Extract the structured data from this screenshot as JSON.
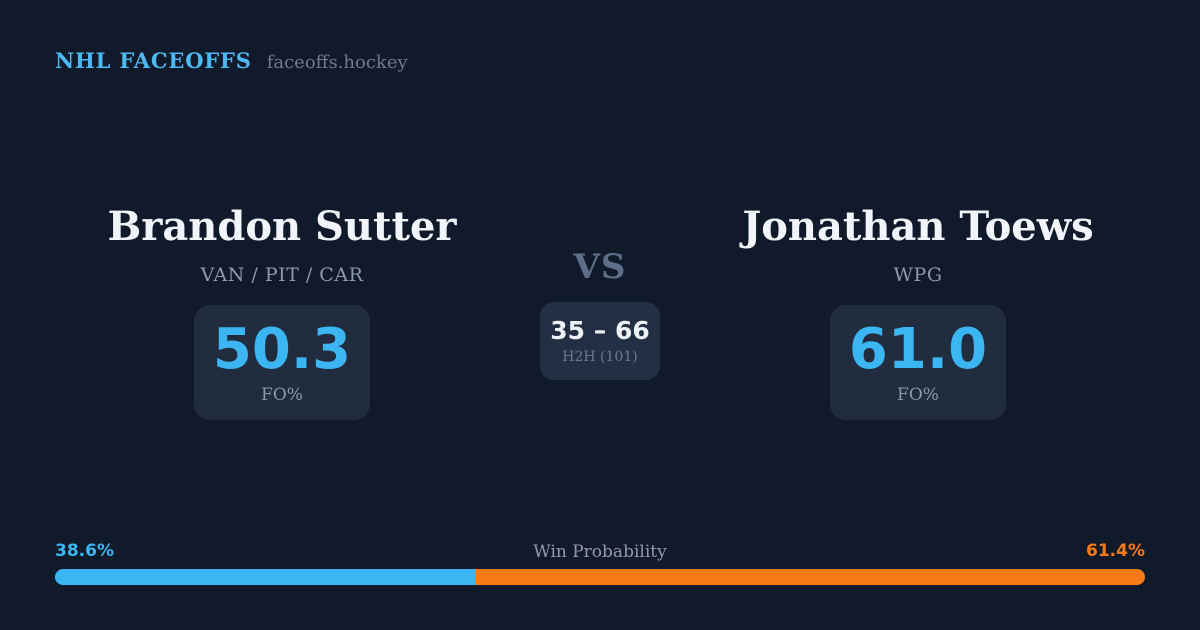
{
  "header": {
    "brand": "NHL FACEOFFS",
    "site": "faceoffs.hockey"
  },
  "players": [
    {
      "name": "Brandon Sutter",
      "teams": "VAN / PIT / CAR",
      "fo_pct": "50.3",
      "fo_label": "FO%"
    },
    {
      "name": "Jonathan Toews",
      "teams": "WPG",
      "fo_pct": "61.0",
      "fo_label": "FO%"
    }
  ],
  "center": {
    "vs": "VS",
    "h2h_score": "35 – 66",
    "h2h_label": "H2H (101)"
  },
  "win_probability": {
    "label": "Win Probability",
    "left_pct": "38.6%",
    "right_pct": "61.4%",
    "left_value": 38.6,
    "right_value": 61.4,
    "left_color": "#3cb6f3",
    "right_color": "#f87a16"
  },
  "colors": {
    "background": "#111a2a",
    "card": "#212c3e",
    "accent_blue": "#3cb6f3",
    "accent_orange": "#f87a16",
    "brand_blue": "#4db9f2"
  },
  "chart_data": {
    "type": "bar",
    "title": "Win Probability",
    "categories": [
      "Brandon Sutter",
      "Jonathan Toews"
    ],
    "series": [
      {
        "name": "Win Probability %",
        "values": [
          38.6,
          61.4
        ]
      },
      {
        "name": "FO%",
        "values": [
          50.3,
          61.0
        ]
      },
      {
        "name": "H2H wins (101 faceoffs)",
        "values": [
          35,
          66
        ]
      }
    ],
    "layout": "single horizontal stacked bar, blue (left player) vs orange (right player), labels at bar ends",
    "legend_position": "none",
    "grid": false
  }
}
